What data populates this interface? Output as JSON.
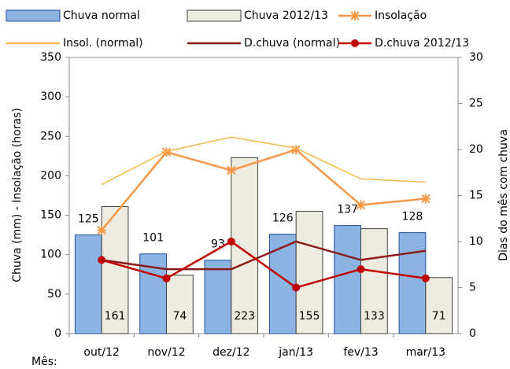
{
  "chart_data": {
    "type": "bar",
    "categories": [
      "out/12",
      "nov/12",
      "dez/12",
      "jan/13",
      "fev/13",
      "mar/13"
    ],
    "x_label": "Mês:",
    "y_label": "Chuva (mm) - Insolação (horas)",
    "y2_label": "Dias do mês com chuva",
    "ylim": [
      0,
      350
    ],
    "yticks": [
      0,
      50,
      100,
      150,
      200,
      250,
      300,
      350
    ],
    "y2lim": [
      0,
      30
    ],
    "y2ticks": [
      0,
      5,
      10,
      15,
      20,
      25,
      30
    ],
    "grid": false,
    "legend": "top",
    "series": [
      {
        "name": "Chuva normal",
        "type": "bar",
        "color": "#8db3e2",
        "edge": "#1f4e9a",
        "label_pos": "above",
        "values": [
          125,
          101,
          93,
          126,
          137,
          128
        ]
      },
      {
        "name": "Chuva 2012/13",
        "type": "bar",
        "color": "#eeece1",
        "edge": "#404040",
        "label_pos": "bottom",
        "values": [
          161,
          74,
          223,
          155,
          133,
          71
        ]
      },
      {
        "name": "Insolação",
        "type": "line",
        "color": "#f79646",
        "marker": "asterisk",
        "values": [
          131,
          230,
          207,
          233,
          163,
          171
        ]
      },
      {
        "name": "Insol. (normal)",
        "type": "line",
        "color": "#f5b94b",
        "marker": "none",
        "values": [
          189,
          231,
          249,
          235,
          196,
          192
        ]
      },
      {
        "name": "D.chuva (normal)",
        "type": "line",
        "axis": "y2",
        "color": "#8b1a1a",
        "marker": "none",
        "values": [
          8,
          7,
          7,
          10,
          8,
          9
        ]
      },
      {
        "name": "D.chuva 2012/13",
        "type": "line",
        "axis": "y2",
        "color": "#c00000",
        "marker": "circle",
        "values": [
          8,
          6,
          10,
          5,
          7,
          6
        ]
      }
    ]
  }
}
